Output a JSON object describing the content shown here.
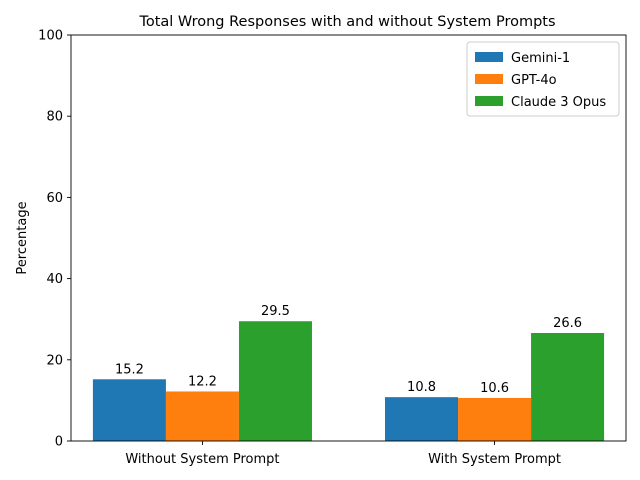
{
  "chart_data": {
    "type": "bar",
    "title": "Total Wrong Responses with and without System Prompts",
    "xlabel": "",
    "ylabel": "Percentage",
    "ylim": [
      0,
      100
    ],
    "yticks": [
      0,
      20,
      40,
      60,
      80,
      100
    ],
    "categories": [
      "Without System Prompt",
      "With System Prompt"
    ],
    "series": [
      {
        "name": "Gemini-1",
        "color": "#1f77b4",
        "values": [
          15.2,
          10.8
        ]
      },
      {
        "name": "GPT-4o",
        "color": "#ff7f0e",
        "values": [
          12.2,
          10.6
        ]
      },
      {
        "name": "Claude 3 Opus",
        "color": "#2ca02c",
        "values": [
          29.5,
          26.6
        ]
      }
    ],
    "legend": "top-right",
    "grid": false
  }
}
